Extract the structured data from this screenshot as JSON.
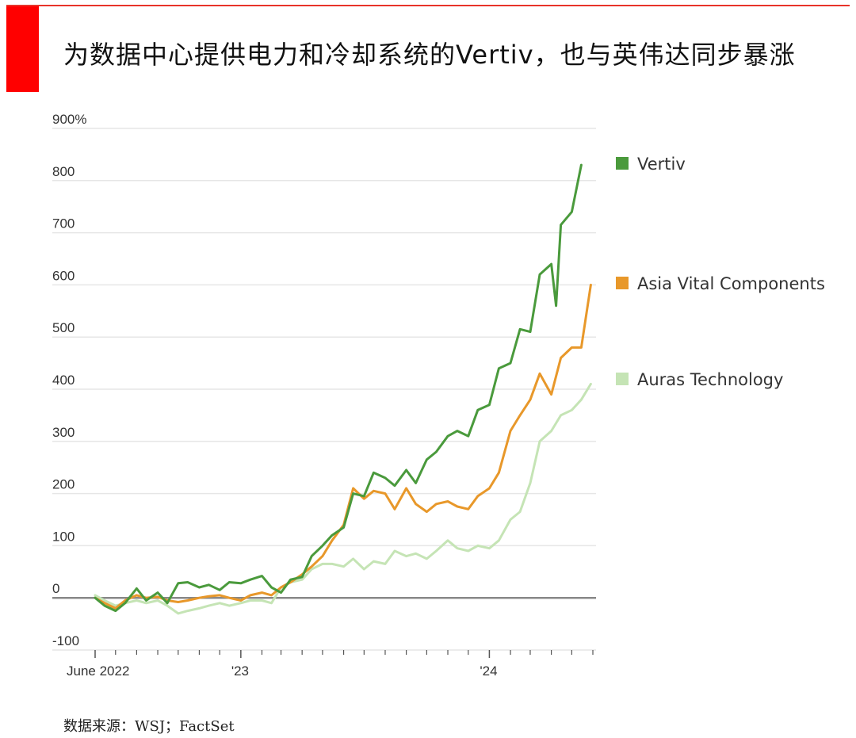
{
  "title": "为数据中心提供电力和冷却系统的Vertiv，也与英伟达同步暴涨",
  "source": "数据来源：WSJ；FactSet",
  "colors": {
    "accent": "#ff0000",
    "vertiv": "#4a9a3c",
    "avc": "#e8982a",
    "auras": "#c5e4b5",
    "grid": "#e6e6e6",
    "zero": "#888888"
  },
  "chart_data": {
    "type": "line",
    "ylim": [
      -100,
      900
    ],
    "y_ticks": [
      "900%",
      "800",
      "700",
      "600",
      "500",
      "400",
      "300",
      "200",
      "100",
      "0",
      "-100"
    ],
    "x_ticks": [
      "June 2022",
      "'23",
      "'24"
    ],
    "xlim": [
      "2022-06-01",
      "2024-06-01"
    ],
    "legend_position": "right",
    "series": [
      {
        "name": "Vertiv",
        "color": "#4a9a3c",
        "x": [
          "2022-06-01",
          "2022-06-15",
          "2022-07-01",
          "2022-07-15",
          "2022-08-01",
          "2022-08-15",
          "2022-09-01",
          "2022-09-15",
          "2022-10-01",
          "2022-10-15",
          "2022-11-01",
          "2022-11-15",
          "2022-12-01",
          "2022-12-15",
          "2023-01-01",
          "2023-01-15",
          "2023-02-01",
          "2023-02-15",
          "2023-03-01",
          "2023-03-15",
          "2023-04-01",
          "2023-04-15",
          "2023-05-01",
          "2023-05-15",
          "2023-06-01",
          "2023-06-15",
          "2023-07-01",
          "2023-07-15",
          "2023-08-01",
          "2023-08-15",
          "2023-09-01",
          "2023-09-15",
          "2023-10-01",
          "2023-10-15",
          "2023-11-01",
          "2023-11-15",
          "2023-12-01",
          "2023-12-15",
          "2024-01-01",
          "2024-01-15",
          "2024-02-01",
          "2024-02-15",
          "2024-03-01",
          "2024-03-15",
          "2024-04-01",
          "2024-04-08",
          "2024-04-15",
          "2024-05-01",
          "2024-05-15"
        ],
        "values": [
          0,
          -15,
          -25,
          -10,
          18,
          -5,
          10,
          -10,
          28,
          30,
          20,
          25,
          15,
          30,
          28,
          35,
          42,
          20,
          10,
          35,
          40,
          80,
          100,
          120,
          135,
          200,
          195,
          240,
          230,
          215,
          245,
          220,
          265,
          280,
          310,
          320,
          310,
          360,
          370,
          440,
          450,
          515,
          510,
          620,
          640,
          560,
          715,
          740,
          830
        ]
      },
      {
        "name": "Asia Vital Components",
        "color": "#e8982a",
        "x": [
          "2022-06-01",
          "2022-06-15",
          "2022-07-01",
          "2022-07-15",
          "2022-08-01",
          "2022-08-15",
          "2022-09-01",
          "2022-09-15",
          "2022-10-01",
          "2022-10-15",
          "2022-11-01",
          "2022-11-15",
          "2022-12-01",
          "2022-12-15",
          "2023-01-01",
          "2023-01-15",
          "2023-02-01",
          "2023-02-15",
          "2023-03-01",
          "2023-03-15",
          "2023-04-01",
          "2023-04-15",
          "2023-05-01",
          "2023-05-15",
          "2023-06-01",
          "2023-06-15",
          "2023-07-01",
          "2023-07-15",
          "2023-08-01",
          "2023-08-15",
          "2023-09-01",
          "2023-09-15",
          "2023-10-01",
          "2023-10-15",
          "2023-11-01",
          "2023-11-15",
          "2023-12-01",
          "2023-12-15",
          "2024-01-01",
          "2024-01-15",
          "2024-02-01",
          "2024-02-15",
          "2024-03-01",
          "2024-03-15",
          "2024-04-01",
          "2024-04-15",
          "2024-05-01",
          "2024-05-15",
          "2024-05-29"
        ],
        "values": [
          0,
          -10,
          -20,
          -5,
          5,
          0,
          2,
          -5,
          -8,
          -5,
          0,
          3,
          5,
          0,
          -5,
          5,
          10,
          5,
          20,
          30,
          45,
          60,
          80,
          110,
          140,
          210,
          190,
          205,
          200,
          170,
          210,
          180,
          165,
          180,
          185,
          175,
          170,
          195,
          210,
          240,
          320,
          350,
          380,
          430,
          390,
          460,
          480,
          480,
          600
        ]
      },
      {
        "name": "Auras Technology",
        "color": "#c5e4b5",
        "x": [
          "2022-06-01",
          "2022-06-15",
          "2022-07-01",
          "2022-07-15",
          "2022-08-01",
          "2022-08-15",
          "2022-09-01",
          "2022-09-15",
          "2022-10-01",
          "2022-10-15",
          "2022-11-01",
          "2022-11-15",
          "2022-12-01",
          "2022-12-15",
          "2023-01-01",
          "2023-01-15",
          "2023-02-01",
          "2023-02-15",
          "2023-03-01",
          "2023-03-15",
          "2023-04-01",
          "2023-04-15",
          "2023-05-01",
          "2023-05-15",
          "2023-06-01",
          "2023-06-15",
          "2023-07-01",
          "2023-07-15",
          "2023-08-01",
          "2023-08-15",
          "2023-09-01",
          "2023-09-15",
          "2023-10-01",
          "2023-10-15",
          "2023-11-01",
          "2023-11-15",
          "2023-12-01",
          "2023-12-15",
          "2024-01-01",
          "2024-01-15",
          "2024-02-01",
          "2024-02-15",
          "2024-03-01",
          "2024-03-15",
          "2024-04-01",
          "2024-04-15",
          "2024-05-01",
          "2024-05-15",
          "2024-05-29"
        ],
        "values": [
          5,
          -5,
          -15,
          -10,
          -5,
          -10,
          -5,
          -15,
          -30,
          -25,
          -20,
          -15,
          -10,
          -15,
          -10,
          -5,
          -5,
          -10,
          20,
          30,
          35,
          55,
          65,
          65,
          60,
          75,
          55,
          70,
          65,
          90,
          80,
          85,
          75,
          90,
          110,
          95,
          90,
          100,
          95,
          110,
          150,
          165,
          220,
          300,
          320,
          350,
          360,
          380,
          410
        ]
      }
    ]
  }
}
